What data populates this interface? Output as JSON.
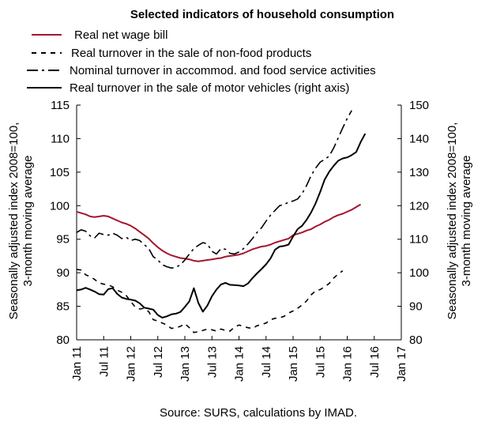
{
  "chart_data": {
    "type": "line",
    "title": "Selected indicators of household consumption",
    "source": "Source: SURS, calculations by IMAD.",
    "ylabel_left": [
      "Seasonally adjusted index 2008=100,",
      "3-month moving average"
    ],
    "ylabel_right": [
      "Seasonally adjusted index 2008=100,",
      "3-month moving average"
    ],
    "ylim_left": [
      80,
      115
    ],
    "ylim_right": [
      80,
      150
    ],
    "yticks_left": [
      "115",
      "110",
      "105",
      "100",
      "95",
      "90",
      "85",
      "80"
    ],
    "yticks_right": [
      "150",
      "140",
      "130",
      "120",
      "110",
      "100",
      "90",
      "80"
    ],
    "xticks": [
      "Jan 11",
      "Jul 11",
      "Jan 12",
      "Jul 12",
      "Jan 13",
      "Jul 13",
      "Jan 14",
      "Jul 14",
      "Jan 15",
      "Jul 15",
      "Jan 16",
      "Jul 16",
      "Jan 17"
    ],
    "x_start": "2011-01",
    "x_end": "2017-01",
    "grid": false,
    "legend_position": "top",
    "series": [
      {
        "name": "Real net wage bill",
        "axis": "left",
        "color": "#a3162b",
        "style": "solid",
        "values": [
          99.1,
          98.9,
          98.7,
          98.4,
          98.3,
          98.4,
          98.5,
          98.4,
          98.1,
          97.8,
          97.5,
          97.3,
          97.0,
          96.6,
          96.1,
          95.6,
          95.1,
          94.4,
          93.8,
          93.3,
          92.9,
          92.6,
          92.4,
          92.2,
          92.1,
          92.0,
          91.8,
          91.7,
          91.8,
          91.9,
          92.0,
          92.1,
          92.2,
          92.4,
          92.5,
          92.6,
          92.7,
          92.9,
          93.2,
          93.5,
          93.7,
          93.9,
          94.0,
          94.2,
          94.5,
          94.7,
          94.9,
          95.1,
          95.6,
          95.8,
          96.0,
          96.3,
          96.5,
          96.9,
          97.2,
          97.6,
          97.9,
          98.3,
          98.6,
          98.8,
          99.1,
          99.4,
          99.8,
          100.2
        ]
      },
      {
        "name": "Real turnover in the sale of non-food products",
        "axis": "left",
        "color": "#000000",
        "style": "dashed",
        "values": [
          90.5,
          90.4,
          89.7,
          89.4,
          89.0,
          88.5,
          88.3,
          88.2,
          87.9,
          87.4,
          87.1,
          86.6,
          85.7,
          84.9,
          84.6,
          84.7,
          84.2,
          83.0,
          82.8,
          82.5,
          82.2,
          81.7,
          81.8,
          82.0,
          82.4,
          81.8,
          81.1,
          81.2,
          81.4,
          81.6,
          81.5,
          81.3,
          81.6,
          81.4,
          81.3,
          81.9,
          82.2,
          82.0,
          81.8,
          81.7,
          82.1,
          82.3,
          82.5,
          83.0,
          83.2,
          83.3,
          83.5,
          84.0,
          84.3,
          84.7,
          85.2,
          85.8,
          86.7,
          87.3,
          87.5,
          87.9,
          88.4,
          89.2,
          89.8,
          90.3
        ]
      },
      {
        "name": "Nominal turnover in accommod. and food service activities",
        "axis": "left",
        "color": "#000000",
        "style": "dashdot",
        "values": [
          96.0,
          96.4,
          96.2,
          95.5,
          95.2,
          95.9,
          95.7,
          95.6,
          95.9,
          95.6,
          95.1,
          95.3,
          94.8,
          95.0,
          94.8,
          94.2,
          93.6,
          92.4,
          91.9,
          91.2,
          90.9,
          90.7,
          90.8,
          91.2,
          91.9,
          92.8,
          93.6,
          94.1,
          94.5,
          94.3,
          93.2,
          92.8,
          93.6,
          93.5,
          92.9,
          92.8,
          93.1,
          93.6,
          94.3,
          95.1,
          96.0,
          96.7,
          97.7,
          98.6,
          99.3,
          100.0,
          100.2,
          100.5,
          100.7,
          101.0,
          101.8,
          103.0,
          104.5,
          105.6,
          106.5,
          106.9,
          107.4,
          108.6,
          110.1,
          111.6,
          113.0,
          114.2
        ]
      },
      {
        "name": "Real turnover in the sale of motor vehicles (right axis)",
        "axis": "right",
        "color": "#000000",
        "style": "solid",
        "values": [
          94.8,
          95.0,
          95.5,
          95.0,
          94.4,
          93.6,
          93.5,
          95.1,
          95.4,
          93.7,
          92.6,
          92.2,
          92.0,
          91.7,
          90.9,
          89.6,
          89.3,
          89.0,
          87.4,
          86.6,
          87.0,
          87.6,
          87.8,
          88.3,
          89.8,
          91.5,
          95.4,
          91.0,
          88.4,
          90.2,
          93.0,
          95.0,
          96.5,
          97.0,
          96.4,
          96.3,
          96.2,
          96.0,
          96.8,
          98.4,
          99.8,
          101.1,
          102.5,
          104.3,
          106.9,
          107.8,
          108.0,
          108.4,
          110.8,
          113.0,
          114.0,
          115.8,
          118.0,
          120.7,
          124.1,
          127.8,
          130.1,
          131.9,
          133.4,
          134.1,
          134.4,
          135.1,
          136.0,
          139.0,
          141.5
        ]
      }
    ]
  }
}
